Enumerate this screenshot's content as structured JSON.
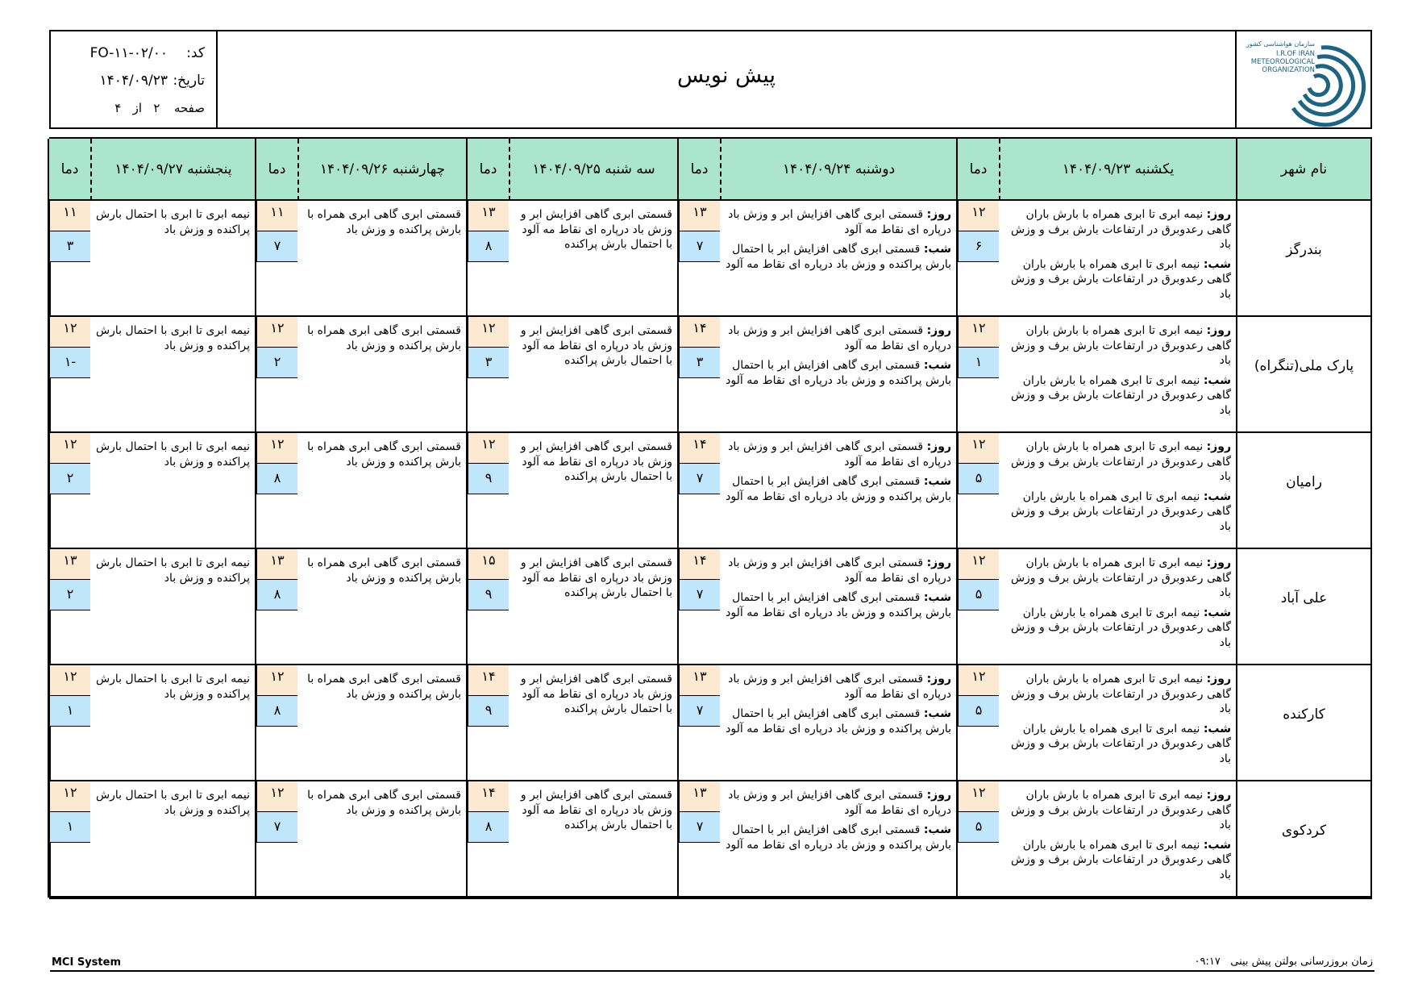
{
  "header": {
    "title": "پیش نویس",
    "code_label": "کد:",
    "code_value": "FO-۱۱-۰۲/۰۰",
    "date_label": "تاریخ:",
    "date_value": "۱۴۰۴/۰۹/۲۳",
    "page_label": "صفحه",
    "page_current": "۲",
    "page_of": "از",
    "page_total": "۴",
    "logo": {
      "line1": "سازمان هواشناسی کشور",
      "line2": "I.R.OF IRAN",
      "line3": "METEOROLOGICAL",
      "line4": "ORGANIZATION",
      "color": "#1f6383"
    }
  },
  "table": {
    "city_header": "نام شهر",
    "temp_header": "دما",
    "day_label": "روز:",
    "night_label": "شب:",
    "days": [
      {
        "label": "یکشنبه ۱۴۰۴/۰۹/۲۳"
      },
      {
        "label": "دوشنبه ۱۴۰۴/۰۹/۲۴"
      },
      {
        "label": "سه شنبه ۱۴۰۴/۰۹/۲۵"
      },
      {
        "label": "چهارشنبه ۱۴۰۴/۰۹/۲۶"
      },
      {
        "label": "پنجشنبه ۱۴۰۴/۰۹/۲۷"
      }
    ],
    "descriptions": [
      {
        "day": "نیمه ابری تا ابری همراه با بارش باران گاهی رعدوبرق در ارتفاعات بارش برف و وزش باد",
        "night": "نیمه ابری تا ابری همراه با بارش باران گاهی رعدوبرق در ارتفاعات بارش برف و وزش باد"
      },
      {
        "day": "قسمتی ابری گاهی افزایش ابر و وزش باد درپاره ای نقاط مه آلود",
        "night": "قسمتی ابری گاهی افزایش ابر با احتمال بارش پراکنده و وزش باد درپاره ای نقاط مه آلود"
      },
      {
        "text": "قسمتی ابری گاهی افزایش ابر و وزش باد درپاره ای نقاط مه آلود با احتمال بارش پراکنده"
      },
      {
        "text": "قسمتی ابری گاهی ابری همراه با بارش پراکنده و وزش باد"
      },
      {
        "text": "نیمه ابری تا ابری با احتمال بارش پراکنده و وزش باد"
      }
    ],
    "cities": [
      {
        "name": "بندرگز",
        "temps": [
          {
            "max": "۱۲",
            "min": "۶"
          },
          {
            "max": "۱۳",
            "min": "۷"
          },
          {
            "max": "۱۳",
            "min": "۸"
          },
          {
            "max": "۱۱",
            "min": "۷"
          },
          {
            "max": "۱۱",
            "min": "۳"
          }
        ]
      },
      {
        "name": "پارک ملی(تنگراه)",
        "temps": [
          {
            "max": "۱۲",
            "min": "۱"
          },
          {
            "max": "۱۴",
            "min": "۳"
          },
          {
            "max": "۱۲",
            "min": "۳"
          },
          {
            "max": "۱۲",
            "min": "۲"
          },
          {
            "max": "۱۲",
            "min": "-۱"
          }
        ]
      },
      {
        "name": "رامیان",
        "temps": [
          {
            "max": "۱۲",
            "min": "۵"
          },
          {
            "max": "۱۴",
            "min": "۷"
          },
          {
            "max": "۱۲",
            "min": "۹"
          },
          {
            "max": "۱۲",
            "min": "۸"
          },
          {
            "max": "۱۲",
            "min": "۲"
          }
        ]
      },
      {
        "name": "علی آباد",
        "temps": [
          {
            "max": "۱۲",
            "min": "۵"
          },
          {
            "max": "۱۴",
            "min": "۷"
          },
          {
            "max": "۱۵",
            "min": "۹"
          },
          {
            "max": "۱۳",
            "min": "۸"
          },
          {
            "max": "۱۳",
            "min": "۲"
          }
        ]
      },
      {
        "name": "کارکنده",
        "temps": [
          {
            "max": "۱۲",
            "min": "۵"
          },
          {
            "max": "۱۳",
            "min": "۷"
          },
          {
            "max": "۱۴",
            "min": "۹"
          },
          {
            "max": "۱۲",
            "min": "۸"
          },
          {
            "max": "۱۲",
            "min": "۱"
          }
        ]
      },
      {
        "name": "کردکوی",
        "temps": [
          {
            "max": "۱۲",
            "min": "۵"
          },
          {
            "max": "۱۳",
            "min": "۷"
          },
          {
            "max": "۱۴",
            "min": "۸"
          },
          {
            "max": "۱۲",
            "min": "۷"
          },
          {
            "max": "۱۲",
            "min": "۱"
          }
        ]
      }
    ]
  },
  "footer": {
    "system": "MCI System",
    "update_label": "زمان بروزرسانی بولتن پیش بینی",
    "update_time": "۰۹:۱۷"
  },
  "colors": {
    "header_bg": "#abe5cd",
    "max_temp_bg": "#fde8d2",
    "min_temp_bg": "#bfe6fb"
  }
}
